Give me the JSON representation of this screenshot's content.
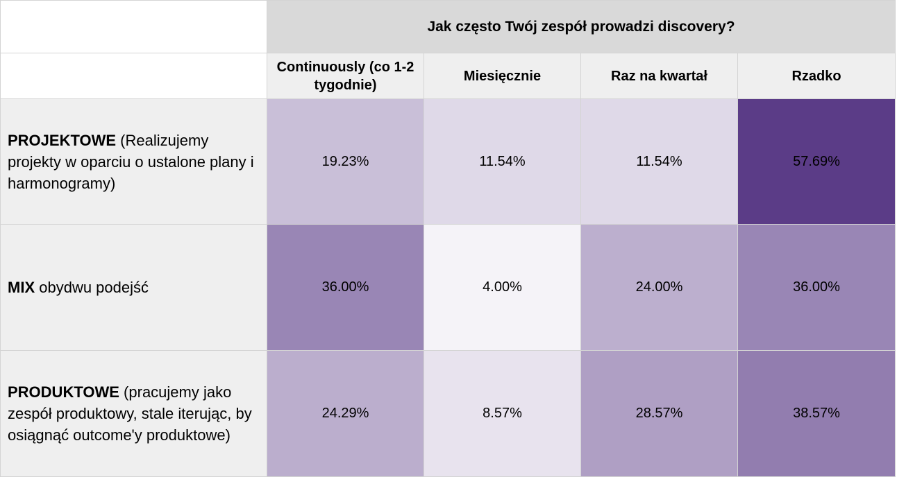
{
  "chart_data": {
    "type": "heatmap",
    "title": "Jak często Twój zespół prowadzi discovery?",
    "columns": [
      "Continuously (co 1-2 tygodnie)",
      "Miesięcznie",
      "Raz na kwartał",
      "Rzadko"
    ],
    "rows": [
      {
        "label_bold": "PROJEKTOWE",
        "label_rest": " (Realizujemy projekty w oparciu o ustalone plany i harmonogramy)",
        "values": [
          19.23,
          11.54,
          11.54,
          57.69
        ],
        "labels": [
          "19.23%",
          "11.54%",
          "11.54%",
          "57.69%"
        ]
      },
      {
        "label_bold": "MIX",
        "label_rest": " obydwu podejść",
        "values": [
          36.0,
          4.0,
          24.0,
          36.0
        ],
        "labels": [
          "36.00%",
          "4.00%",
          "24.00%",
          "36.00%"
        ]
      },
      {
        "label_bold": "PRODUKTOWE",
        "label_rest": " (pracujemy jako zespół produktowy, stale iterując, by osiągnąć outcome'y produktowe)",
        "values": [
          24.29,
          8.57,
          28.57,
          38.57
        ],
        "labels": [
          "24.29%",
          "8.57%",
          "28.57%",
          "38.57%"
        ]
      }
    ],
    "colors": {
      "low": "#f5f3f8",
      "high": "#5b3c87"
    },
    "value_range": [
      4.0,
      57.69
    ]
  }
}
